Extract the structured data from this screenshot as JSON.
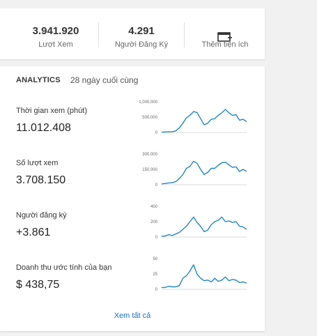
{
  "stats": [
    {
      "value": "3.941.920",
      "label": "Lượt Xem"
    },
    {
      "value": "4.291",
      "label": "Người Đăng Ký"
    }
  ],
  "add_widget": {
    "label": "Thêm tiện ích",
    "icon": "add-widget-icon"
  },
  "analytics": {
    "title": "ANALYTICS",
    "period": "28 ngày cuối cùng",
    "see_all": "Xem tất cả"
  },
  "colors": {
    "line": "#1f86c6",
    "axis": "#cfcfcf",
    "link": "#1a6fc9"
  },
  "metrics": [
    {
      "label": "Thời gian xem (phút)",
      "value": "11.012.408"
    },
    {
      "label": "Số lượt xem",
      "value": "3.708.150"
    },
    {
      "label": "Người đăng ký",
      "value": "+3.861"
    },
    {
      "label": "Doanh thu ước tính của bạn",
      "value": "$ 438,75"
    }
  ],
  "chart_data": [
    {
      "type": "line",
      "yticks": [
        "1,000,000",
        "500,000",
        "0"
      ],
      "ylim": [
        0,
        1000000
      ],
      "values": [
        10000,
        15000,
        20000,
        25000,
        50000,
        150000,
        300000,
        480000,
        560000,
        680000,
        650000,
        450000,
        250000,
        300000,
        430000,
        450000,
        560000,
        640000,
        750000,
        640000,
        560000,
        580000,
        400000,
        430000,
        350000
      ]
    },
    {
      "type": "line",
      "yticks": [
        "300,000",
        "150,000",
        "0"
      ],
      "ylim": [
        0,
        300000
      ],
      "values": [
        8000,
        12000,
        18000,
        20000,
        30000,
        60000,
        100000,
        160000,
        180000,
        230000,
        210000,
        150000,
        100000,
        120000,
        160000,
        160000,
        190000,
        215000,
        220000,
        195000,
        170000,
        175000,
        130000,
        150000,
        130000
      ]
    },
    {
      "type": "line",
      "yticks": [
        "400",
        "200",
        "0"
      ],
      "ylim": [
        0,
        400
      ],
      "values": [
        10,
        15,
        30,
        20,
        40,
        60,
        100,
        140,
        200,
        260,
        190,
        140,
        70,
        90,
        160,
        200,
        220,
        260,
        200,
        210,
        190,
        200,
        140,
        130,
        100
      ]
    },
    {
      "type": "line",
      "yticks": [
        "50",
        "25",
        "0"
      ],
      "ylim": [
        0,
        50
      ],
      "values": [
        3,
        3,
        5,
        4,
        4,
        6,
        18,
        22,
        30,
        40,
        25,
        18,
        14,
        15,
        12,
        18,
        13,
        15,
        20,
        14,
        16,
        15,
        11,
        12,
        10
      ]
    }
  ]
}
